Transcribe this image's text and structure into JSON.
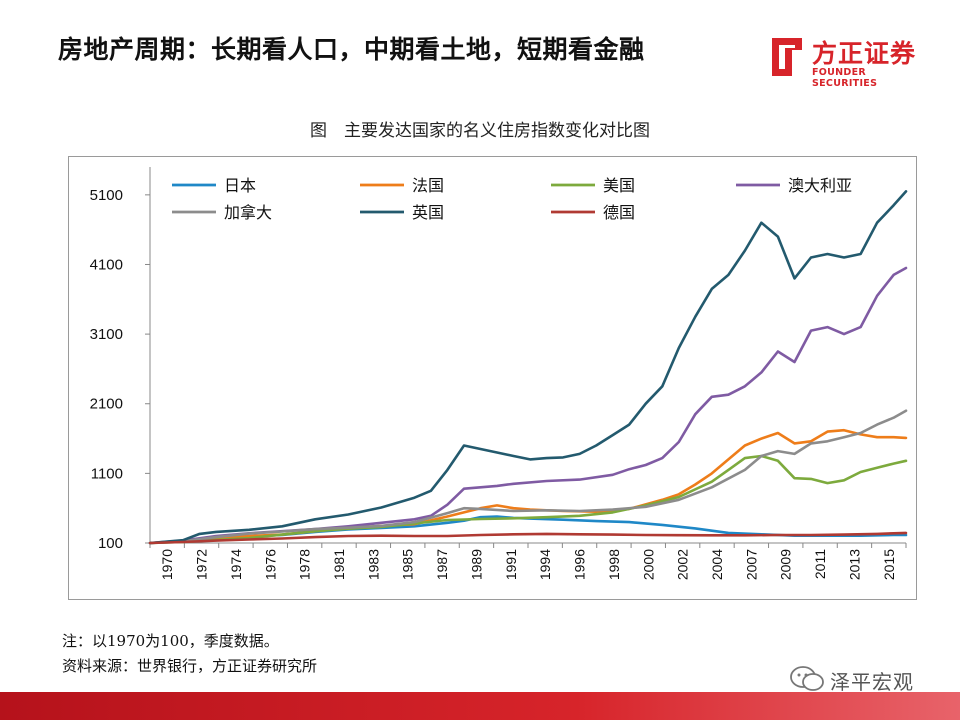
{
  "header": {
    "title": "房地产周期：长期看人口，中期看土地，短期看金融",
    "logo_name": "方正证券",
    "logo_en": "FOUNDER SECURITIES"
  },
  "figure": {
    "title": "图　主要发达国家的名义住房指数变化对比图"
  },
  "notes": {
    "line1": "注：以1970为100，季度数据。",
    "line2": "资料来源：世界银行，方正证券研究所"
  },
  "watermark": {
    "text": "泽平宏观"
  },
  "chart_data": {
    "type": "line",
    "title": "主要发达国家的名义住房指数变化对比图",
    "xlabel": "",
    "ylabel": "",
    "xlim": [
      1970,
      2015.75
    ],
    "ylim": [
      100,
      5500
    ],
    "y_ticks": [
      100,
      1100,
      2100,
      3100,
      4100,
      5100
    ],
    "x_tick_labels": [
      "1970",
      "1972",
      "1974",
      "1976",
      "1978",
      "1981",
      "1983",
      "1985",
      "1987",
      "1989",
      "1991",
      "1994",
      "1996",
      "1998",
      "2000",
      "2002",
      "2004",
      "2007",
      "2009",
      "2011",
      "2013",
      "2015"
    ],
    "legend_position": "top",
    "series": [
      {
        "name": "日本",
        "color": "#1f88c7",
        "points": [
          [
            1970,
            100
          ],
          [
            1972,
            120
          ],
          [
            1974,
            170
          ],
          [
            1976,
            195
          ],
          [
            1978,
            215
          ],
          [
            1980,
            260
          ],
          [
            1982,
            295
          ],
          [
            1984,
            315
          ],
          [
            1986,
            340
          ],
          [
            1988,
            390
          ],
          [
            1989,
            420
          ],
          [
            1990,
            470
          ],
          [
            1991,
            480
          ],
          [
            1992,
            460
          ],
          [
            1993,
            450
          ],
          [
            1995,
            435
          ],
          [
            1997,
            415
          ],
          [
            1999,
            400
          ],
          [
            2001,
            360
          ],
          [
            2003,
            310
          ],
          [
            2005,
            245
          ],
          [
            2007,
            225
          ],
          [
            2009,
            205
          ],
          [
            2011,
            205
          ],
          [
            2013,
            205
          ],
          [
            2015,
            215
          ],
          [
            2015.75,
            215
          ]
        ]
      },
      {
        "name": "法国",
        "color": "#ee7d1a",
        "points": [
          [
            1970,
            100
          ],
          [
            1972,
            125
          ],
          [
            1974,
            170
          ],
          [
            1976,
            200
          ],
          [
            1978,
            220
          ],
          [
            1980,
            270
          ],
          [
            1982,
            315
          ],
          [
            1984,
            345
          ],
          [
            1986,
            370
          ],
          [
            1988,
            480
          ],
          [
            1990,
            600
          ],
          [
            1991,
            640
          ],
          [
            1992,
            600
          ],
          [
            1993,
            580
          ],
          [
            1995,
            560
          ],
          [
            1997,
            550
          ],
          [
            1999,
            590
          ],
          [
            2001,
            720
          ],
          [
            2002,
            800
          ],
          [
            2003,
            940
          ],
          [
            2004,
            1100
          ],
          [
            2005,
            1300
          ],
          [
            2006,
            1500
          ],
          [
            2007,
            1600
          ],
          [
            2008,
            1680
          ],
          [
            2009,
            1530
          ],
          [
            2010,
            1560
          ],
          [
            2011,
            1700
          ],
          [
            2012,
            1720
          ],
          [
            2013,
            1660
          ],
          [
            2014,
            1620
          ],
          [
            2015,
            1620
          ],
          [
            2015.75,
            1610
          ]
        ]
      },
      {
        "name": "美国",
        "color": "#7daa3d",
        "points": [
          [
            1970,
            100
          ],
          [
            1972,
            115
          ],
          [
            1974,
            145
          ],
          [
            1976,
            170
          ],
          [
            1978,
            220
          ],
          [
            1980,
            270
          ],
          [
            1982,
            305
          ],
          [
            1984,
            330
          ],
          [
            1986,
            380
          ],
          [
            1988,
            430
          ],
          [
            1990,
            445
          ],
          [
            1992,
            455
          ],
          [
            1994,
            470
          ],
          [
            1996,
            490
          ],
          [
            1998,
            540
          ],
          [
            2000,
            640
          ],
          [
            2002,
            760
          ],
          [
            2004,
            980
          ],
          [
            2005,
            1150
          ],
          [
            2006,
            1320
          ],
          [
            2007,
            1350
          ],
          [
            2008,
            1280
          ],
          [
            2009,
            1030
          ],
          [
            2010,
            1020
          ],
          [
            2011,
            960
          ],
          [
            2012,
            1000
          ],
          [
            2013,
            1120
          ],
          [
            2014,
            1180
          ],
          [
            2015,
            1240
          ],
          [
            2015.75,
            1280
          ]
        ]
      },
      {
        "name": "澳大利亚",
        "color": "#7f5ba3",
        "points": [
          [
            1970,
            100
          ],
          [
            1972,
            135
          ],
          [
            1974,
            200
          ],
          [
            1976,
            240
          ],
          [
            1978,
            270
          ],
          [
            1980,
            300
          ],
          [
            1982,
            340
          ],
          [
            1984,
            390
          ],
          [
            1986,
            440
          ],
          [
            1987,
            490
          ],
          [
            1988,
            650
          ],
          [
            1989,
            880
          ],
          [
            1990,
            900
          ],
          [
            1991,
            920
          ],
          [
            1992,
            950
          ],
          [
            1994,
            990
          ],
          [
            1996,
            1010
          ],
          [
            1998,
            1080
          ],
          [
            1999,
            1160
          ],
          [
            2000,
            1220
          ],
          [
            2001,
            1320
          ],
          [
            2002,
            1550
          ],
          [
            2003,
            1950
          ],
          [
            2004,
            2200
          ],
          [
            2005,
            2230
          ],
          [
            2006,
            2350
          ],
          [
            2007,
            2550
          ],
          [
            2008,
            2850
          ],
          [
            2009,
            2700
          ],
          [
            2010,
            3150
          ],
          [
            2011,
            3200
          ],
          [
            2012,
            3100
          ],
          [
            2013,
            3200
          ],
          [
            2014,
            3650
          ],
          [
            2015,
            3950
          ],
          [
            2015.75,
            4050
          ]
        ]
      },
      {
        "name": "加拿大",
        "color": "#8c8c8c",
        "points": [
          [
            1970,
            100
          ],
          [
            1972,
            125
          ],
          [
            1974,
            185
          ],
          [
            1976,
            235
          ],
          [
            1978,
            265
          ],
          [
            1980,
            300
          ],
          [
            1982,
            320
          ],
          [
            1984,
            345
          ],
          [
            1986,
            400
          ],
          [
            1988,
            530
          ],
          [
            1989,
            600
          ],
          [
            1990,
            590
          ],
          [
            1992,
            560
          ],
          [
            1994,
            570
          ],
          [
            1996,
            560
          ],
          [
            1998,
            580
          ],
          [
            2000,
            620
          ],
          [
            2002,
            720
          ],
          [
            2004,
            900
          ],
          [
            2006,
            1150
          ],
          [
            2007,
            1350
          ],
          [
            2008,
            1420
          ],
          [
            2009,
            1380
          ],
          [
            2010,
            1530
          ],
          [
            2011,
            1560
          ],
          [
            2012,
            1620
          ],
          [
            2013,
            1680
          ],
          [
            2014,
            1800
          ],
          [
            2015,
            1900
          ],
          [
            2015.75,
            2000
          ]
        ]
      },
      {
        "name": "英国",
        "color": "#235a6e",
        "points": [
          [
            1970,
            100
          ],
          [
            1972,
            140
          ],
          [
            1973,
            230
          ],
          [
            1974,
            260
          ],
          [
            1976,
            290
          ],
          [
            1978,
            340
          ],
          [
            1980,
            440
          ],
          [
            1982,
            510
          ],
          [
            1984,
            610
          ],
          [
            1986,
            750
          ],
          [
            1987,
            850
          ],
          [
            1988,
            1150
          ],
          [
            1989,
            1500
          ],
          [
            1990,
            1450
          ],
          [
            1991,
            1400
          ],
          [
            1992,
            1350
          ],
          [
            1993,
            1300
          ],
          [
            1994,
            1320
          ],
          [
            1995,
            1330
          ],
          [
            1996,
            1380
          ],
          [
            1997,
            1500
          ],
          [
            1998,
            1650
          ],
          [
            1999,
            1800
          ],
          [
            2000,
            2100
          ],
          [
            2001,
            2350
          ],
          [
            2002,
            2900
          ],
          [
            2003,
            3350
          ],
          [
            2004,
            3750
          ],
          [
            2005,
            3950
          ],
          [
            2006,
            4300
          ],
          [
            2007,
            4700
          ],
          [
            2008,
            4500
          ],
          [
            2009,
            3900
          ],
          [
            2010,
            4200
          ],
          [
            2011,
            4250
          ],
          [
            2012,
            4200
          ],
          [
            2013,
            4250
          ],
          [
            2014,
            4700
          ],
          [
            2015,
            4950
          ],
          [
            2015.75,
            5150
          ]
        ]
      },
      {
        "name": "德国",
        "color": "#b03a33",
        "points": [
          [
            1970,
            100
          ],
          [
            1972,
            115
          ],
          [
            1974,
            135
          ],
          [
            1976,
            150
          ],
          [
            1978,
            165
          ],
          [
            1980,
            185
          ],
          [
            1982,
            200
          ],
          [
            1984,
            205
          ],
          [
            1986,
            200
          ],
          [
            1988,
            200
          ],
          [
            1990,
            215
          ],
          [
            1992,
            225
          ],
          [
            1994,
            230
          ],
          [
            1996,
            225
          ],
          [
            1998,
            220
          ],
          [
            2000,
            215
          ],
          [
            2002,
            212
          ],
          [
            2004,
            210
          ],
          [
            2006,
            210
          ],
          [
            2008,
            215
          ],
          [
            2010,
            215
          ],
          [
            2012,
            220
          ],
          [
            2014,
            230
          ],
          [
            2015,
            240
          ],
          [
            2015.75,
            245
          ]
        ]
      }
    ]
  }
}
